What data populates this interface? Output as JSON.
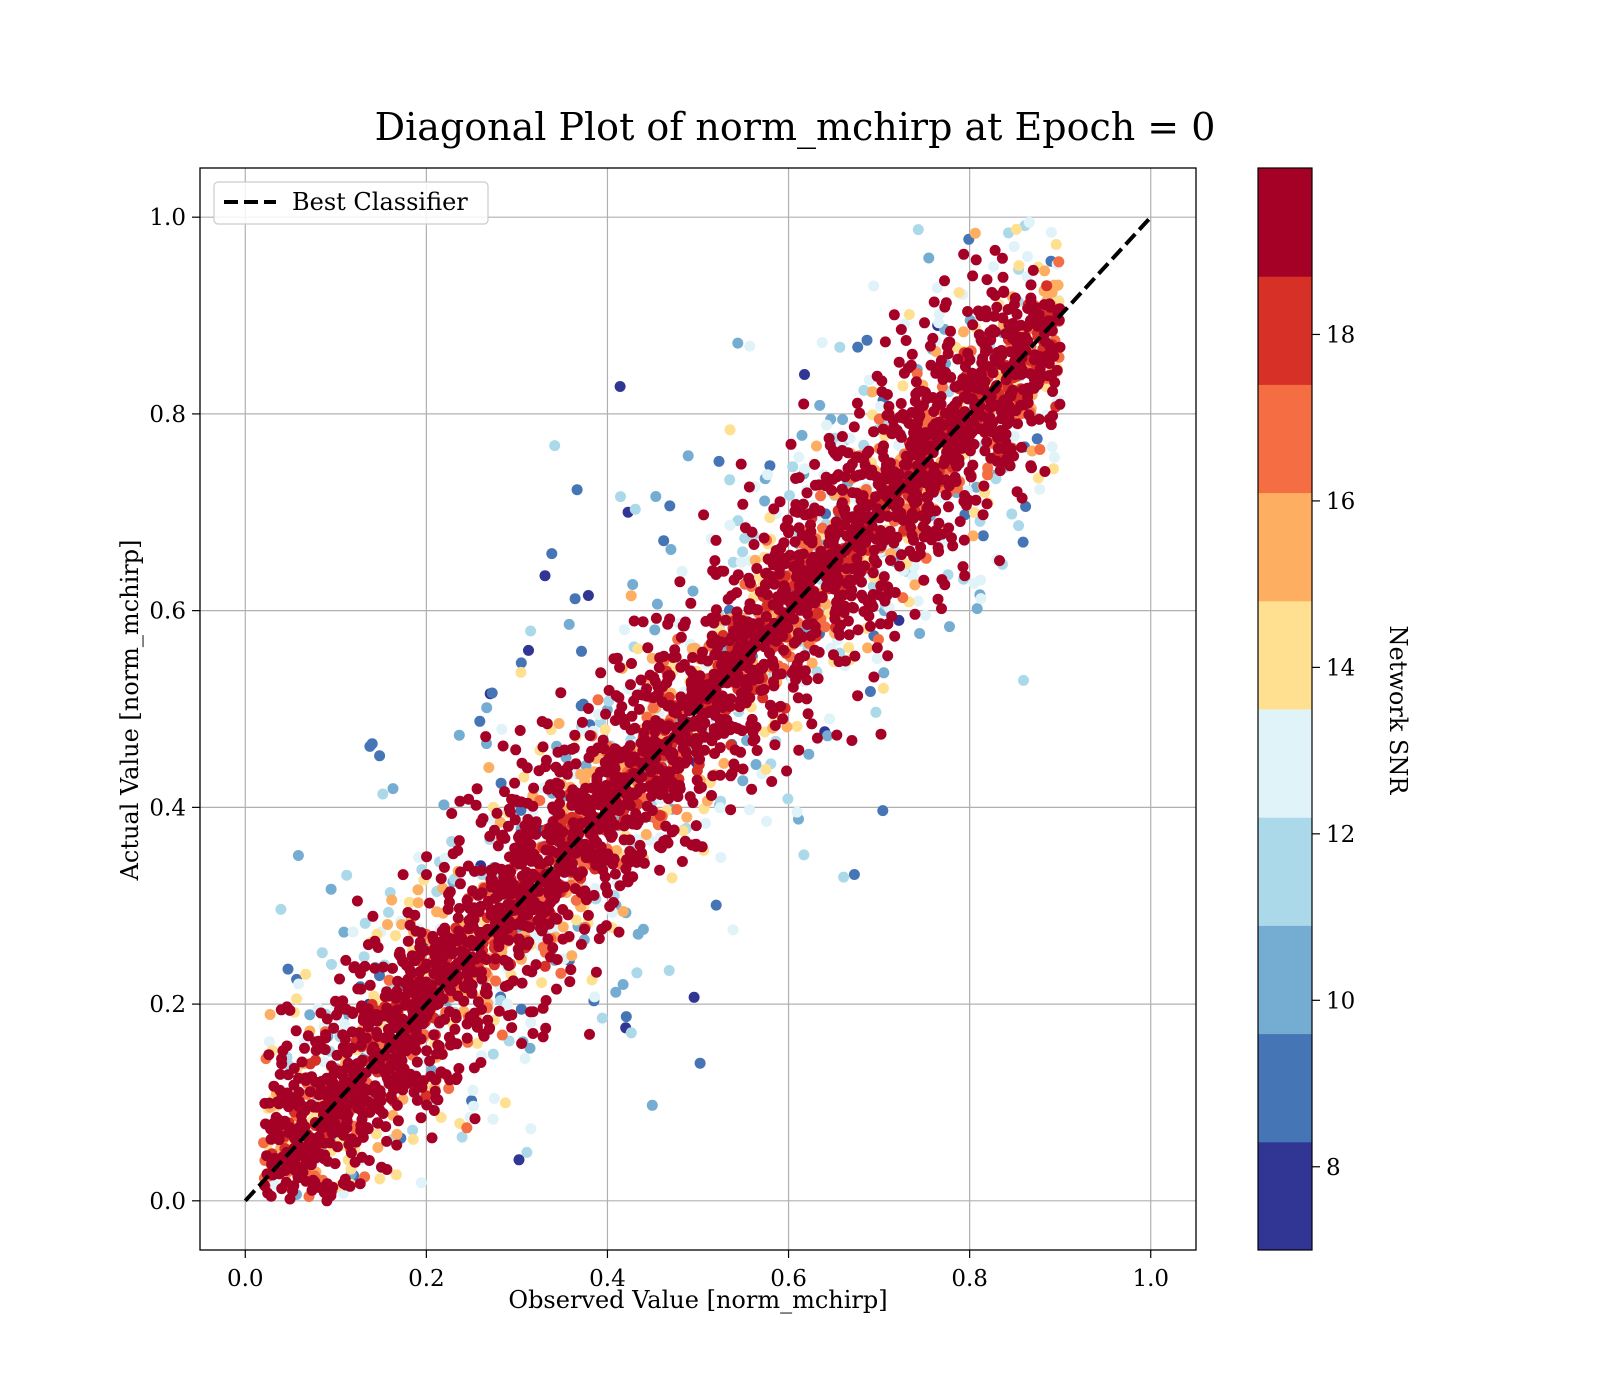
{
  "chart_data": {
    "type": "scatter",
    "title": "Diagonal Plot of norm_mchirp at Epoch = 0",
    "xlabel": "Observed Value [norm_mchirp]",
    "ylabel": "Actual Value [norm_mchirp]",
    "xlim": [
      -0.05,
      1.05
    ],
    "ylim": [
      -0.05,
      1.05
    ],
    "x_ticks": [
      "0.0",
      "0.2",
      "0.4",
      "0.6",
      "0.8",
      "1.0"
    ],
    "y_ticks": [
      "0.0",
      "0.2",
      "0.4",
      "0.6",
      "0.8",
      "1.0"
    ],
    "grid": true,
    "legend": {
      "placement": "upper-left",
      "entries": [
        "Best Classifier"
      ]
    },
    "reference_line": {
      "name": "Best Classifier",
      "x": [
        0.0,
        1.0
      ],
      "y": [
        0.0,
        1.0
      ],
      "style": "dashed",
      "color": "#000000"
    },
    "colorbar": {
      "label": "Network SNR",
      "range": [
        7,
        20
      ],
      "tick_values": [
        8,
        10,
        12,
        14,
        16,
        18
      ],
      "tick_labels": [
        "8",
        "10",
        "12",
        "14",
        "16",
        "18"
      ],
      "colors": [
        "#313695",
        "#4575b4",
        "#74add1",
        "#abd9e9",
        "#e0f3f8",
        "#fee090",
        "#fdae61",
        "#f46d43",
        "#d73027",
        "#a50026"
      ]
    },
    "scatter_summary": {
      "x_range": [
        0.02,
        0.9
      ],
      "y_range": [
        0.0,
        1.0
      ],
      "trend": "points cluster along y = x; high SNR (dark red) points form a dense band along the diagonal, low SNR (blue) points spread further from it"
    }
  }
}
